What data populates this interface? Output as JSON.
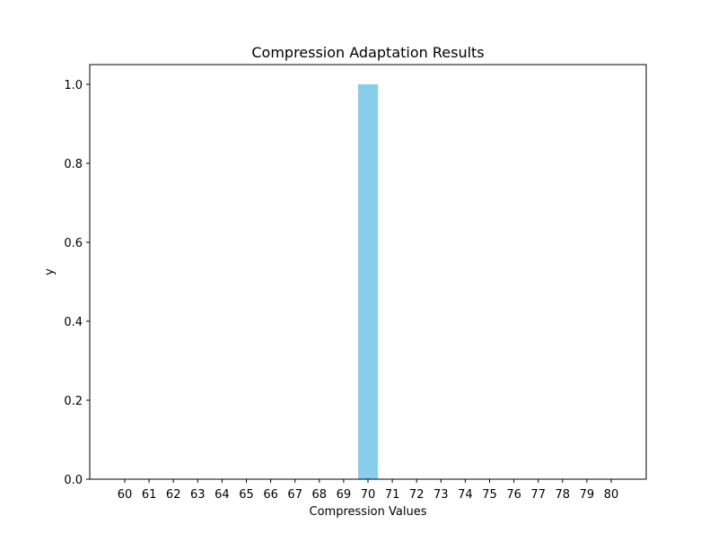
{
  "chart_data": {
    "type": "bar",
    "title": "Compression Adaptation Results",
    "xlabel": "Compression Values",
    "ylabel": "y",
    "categories": [
      "60",
      "61",
      "62",
      "63",
      "64",
      "65",
      "66",
      "67",
      "68",
      "69",
      "70",
      "71",
      "72",
      "73",
      "74",
      "75",
      "76",
      "77",
      "78",
      "79",
      "80"
    ],
    "values": [
      0,
      0,
      0,
      0,
      0,
      0,
      0,
      0,
      0,
      0,
      1,
      0,
      0,
      0,
      0,
      0,
      0,
      0,
      0,
      0,
      0
    ],
    "ylim": [
      0,
      1.05
    ],
    "yticks": [
      "0.0",
      "0.2",
      "0.4",
      "0.6",
      "0.8",
      "1.0"
    ],
    "bar_color": "#87ceeb",
    "grid": false,
    "legend": "none"
  }
}
